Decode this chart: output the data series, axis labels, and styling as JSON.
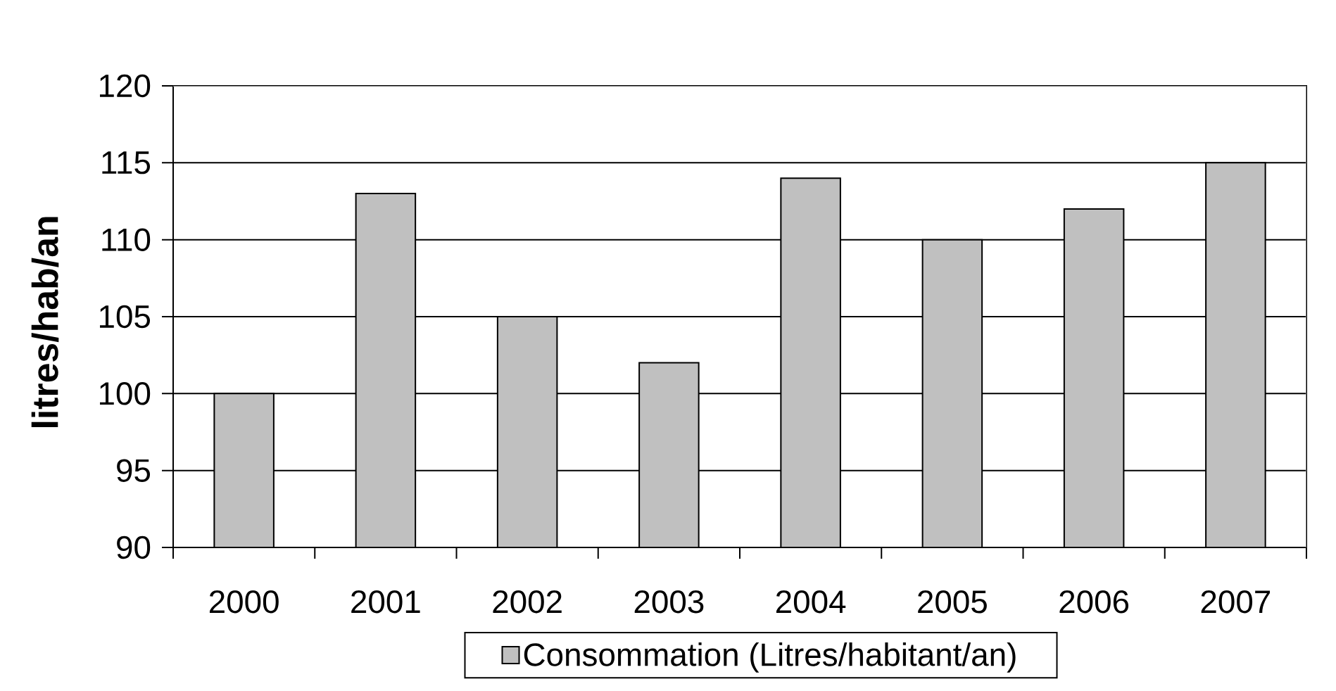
{
  "chart_data": {
    "type": "bar",
    "categories": [
      "2000",
      "2001",
      "2002",
      "2003",
      "2004",
      "2005",
      "2006",
      "2007"
    ],
    "series": [
      {
        "name": "Consommation (Litres/habitant/an)",
        "color": "#c0c0c0",
        "values": [
          100,
          113,
          105,
          102,
          114,
          110,
          112,
          115
        ]
      }
    ],
    "ylabel": "litres/hab/an",
    "ylim": [
      90,
      120
    ],
    "yticks": [
      90,
      95,
      100,
      105,
      110,
      115,
      120
    ],
    "grid": "y",
    "legend": "bottom"
  }
}
